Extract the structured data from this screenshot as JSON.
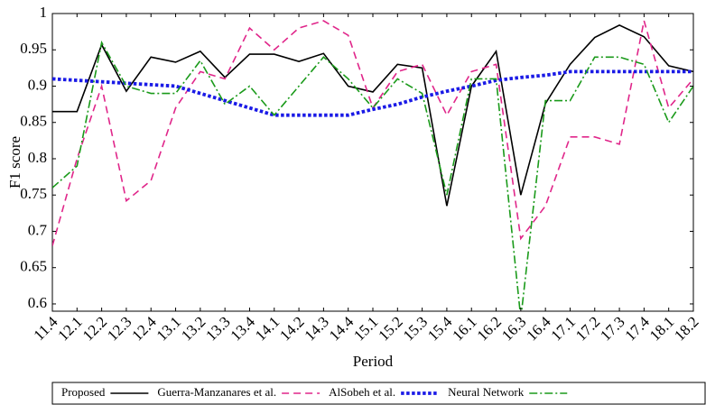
{
  "chart_data": {
    "type": "line",
    "y_label": "F1 score",
    "x_label": "Period",
    "categories": [
      "11.4",
      "12.1",
      "12.2",
      "12.3",
      "12.4",
      "13.1",
      "13.2",
      "13.3",
      "13.4",
      "14.1",
      "14.2",
      "14.3",
      "14.4",
      "15.1",
      "15.2",
      "15.3",
      "15.4",
      "16.1",
      "16.2",
      "16.3",
      "16.4",
      "17.1",
      "17.2",
      "17.3",
      "17.4",
      "18.1",
      "18.2"
    ],
    "ylim": [
      0.59,
      1
    ],
    "yticks": [
      0.6,
      0.65,
      0.7,
      0.75,
      0.8,
      0.85,
      0.9,
      0.95,
      1
    ],
    "legend": "bottom",
    "series": [
      {
        "name": "Proposed",
        "color": "#000000",
        "values": [
          0.865,
          0.865,
          0.957,
          0.893,
          0.94,
          0.933,
          0.948,
          0.912,
          0.944,
          0.944,
          0.934,
          0.945,
          0.9,
          0.892,
          0.93,
          0.925,
          0.735,
          0.9,
          0.948,
          0.75,
          0.876,
          0.93,
          0.967,
          0.984,
          0.968,
          0.928,
          0.92
        ]
      },
      {
        "name": "Guerra-Manzanares et al.",
        "color": "#e0268a",
        "values": [
          0.68,
          0.8,
          0.9,
          0.742,
          0.77,
          0.87,
          0.92,
          0.91,
          0.98,
          0.95,
          0.98,
          0.99,
          0.97,
          0.87,
          0.92,
          0.93,
          0.86,
          0.92,
          0.93,
          0.69,
          0.735,
          0.83,
          0.83,
          0.82,
          0.99,
          0.87,
          0.91
        ]
      },
      {
        "name": "AlSobeh et al.",
        "color": "#1a1ae6",
        "values": [
          0.91,
          0.908,
          0.906,
          0.904,
          0.902,
          0.9,
          0.89,
          0.88,
          0.87,
          0.86,
          0.86,
          0.86,
          0.86,
          0.868,
          0.875,
          0.885,
          0.893,
          0.9,
          0.908,
          0.912,
          0.915,
          0.92,
          0.92,
          0.92,
          0.92,
          0.92,
          0.92
        ]
      },
      {
        "name": "Neural Network",
        "color": "#1a9a1a",
        "values": [
          0.76,
          0.79,
          0.96,
          0.9,
          0.89,
          0.89,
          0.935,
          0.875,
          0.9,
          0.86,
          0.9,
          0.94,
          0.91,
          0.87,
          0.91,
          0.89,
          0.75,
          0.91,
          0.91,
          0.58,
          0.88,
          0.88,
          0.94,
          0.94,
          0.93,
          0.85,
          0.9
        ]
      }
    ]
  }
}
